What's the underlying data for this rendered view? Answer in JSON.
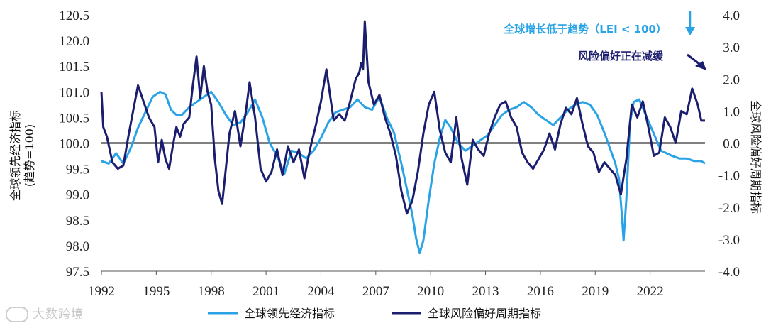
{
  "chart_data": {
    "type": "line",
    "title": "",
    "xlabel": "",
    "x_ticks": [
      "1992",
      "1995",
      "1998",
      "2001",
      "2004",
      "2007",
      "2010",
      "2013",
      "2016",
      "2019",
      "2022"
    ],
    "x_range": [
      1992.0,
      2025.0
    ],
    "left_axis": {
      "label_line1": "全球领先经济指标",
      "label_line2": "(趋势=100)",
      "ylim": [
        97.5,
        120.5
      ],
      "tick_labels": [
        "120.5",
        "120.0",
        "101.5",
        "101.0",
        "100.5",
        "100.0",
        "99.5",
        "99.0",
        "98.5",
        "98.0",
        "97.5"
      ]
    },
    "right_axis": {
      "label": "全球风险偏好周期指标",
      "ylim": [
        -4.0,
        4.0
      ],
      "tick_labels": [
        "4.0",
        "3.0",
        "2.0",
        "1.0",
        "0.0",
        "-1.0",
        "-2.0",
        "-3.0",
        "-4.0"
      ]
    },
    "reference_line": {
      "axis": "right",
      "value": 0.0
    },
    "series": [
      {
        "name": "全球领先经济指标",
        "axis": "left",
        "color": "#29a3e6",
        "x": [
          1992.0,
          1992.4,
          1992.8,
          1993.2,
          1993.6,
          1994.0,
          1994.4,
          1994.8,
          1995.2,
          1995.5,
          1995.8,
          1996.1,
          1996.4,
          1996.8,
          1997.2,
          1997.6,
          1998.0,
          1998.4,
          1998.8,
          1999.2,
          1999.6,
          2000.0,
          2000.4,
          2000.8,
          2001.2,
          2001.6,
          2002.0,
          2002.4,
          2002.8,
          2003.2,
          2003.6,
          2004.0,
          2004.4,
          2004.8,
          2005.2,
          2005.6,
          2006.0,
          2006.4,
          2006.8,
          2007.2,
          2007.6,
          2008.0,
          2008.4,
          2008.7,
          2009.0,
          2009.2,
          2009.4,
          2009.6,
          2009.9,
          2010.2,
          2010.5,
          2010.8,
          2011.1,
          2011.5,
          2011.9,
          2012.3,
          2012.7,
          2013.1,
          2013.5,
          2013.9,
          2014.3,
          2014.7,
          2015.1,
          2015.5,
          2015.9,
          2016.3,
          2016.7,
          2017.1,
          2017.5,
          2017.9,
          2018.3,
          2018.7,
          2019.1,
          2019.5,
          2019.9,
          2020.1,
          2020.3,
          2020.45,
          2020.55,
          2020.7,
          2020.9,
          2021.1,
          2021.4,
          2021.7,
          2022.0,
          2022.3,
          2022.6,
          2022.9,
          2023.2,
          2023.6,
          2024.0,
          2024.4,
          2024.8,
          2025.0
        ],
        "values": [
          99.65,
          99.6,
          99.8,
          99.6,
          99.9,
          100.3,
          100.6,
          100.9,
          101.0,
          100.95,
          100.65,
          100.55,
          100.55,
          100.7,
          100.8,
          100.9,
          101.0,
          100.8,
          100.55,
          100.35,
          100.4,
          100.6,
          100.85,
          100.5,
          100.0,
          99.75,
          99.4,
          99.85,
          99.8,
          99.7,
          99.85,
          100.1,
          100.4,
          100.6,
          100.65,
          100.7,
          100.85,
          100.7,
          100.65,
          100.9,
          100.5,
          100.2,
          99.6,
          99.1,
          98.6,
          98.15,
          97.85,
          98.1,
          98.9,
          99.6,
          100.1,
          100.45,
          100.3,
          100.0,
          99.85,
          99.95,
          100.05,
          100.15,
          100.35,
          100.55,
          100.65,
          100.7,
          100.8,
          100.7,
          100.55,
          100.45,
          100.35,
          100.5,
          100.65,
          100.75,
          100.8,
          100.75,
          100.55,
          100.2,
          99.8,
          99.6,
          99.3,
          98.6,
          98.1,
          98.9,
          100.4,
          100.8,
          100.85,
          100.6,
          100.35,
          100.1,
          99.85,
          99.8,
          99.75,
          99.7,
          99.7,
          99.65,
          99.65,
          99.6
        ]
      },
      {
        "name": "全球风险偏好周期指标",
        "axis": "right",
        "color": "#1b1d6e",
        "x": [
          1992.0,
          1992.1,
          1992.3,
          1992.6,
          1992.9,
          1993.2,
          1993.5,
          1993.8,
          1994.0,
          1994.3,
          1994.6,
          1994.9,
          1995.1,
          1995.3,
          1995.5,
          1995.7,
          1995.9,
          1996.1,
          1996.3,
          1996.5,
          1996.8,
          1997.0,
          1997.2,
          1997.4,
          1997.6,
          1997.8,
          1998.0,
          1998.2,
          1998.4,
          1998.6,
          1998.8,
          1999.0,
          1999.3,
          1999.6,
          1999.9,
          2000.1,
          2000.4,
          2000.7,
          2001.0,
          2001.3,
          2001.6,
          2001.9,
          2002.2,
          2002.5,
          2002.8,
          2003.1,
          2003.4,
          2003.7,
          2004.0,
          2004.3,
          2004.5,
          2004.7,
          2005.0,
          2005.3,
          2005.6,
          2005.9,
          2006.1,
          2006.2,
          2006.3,
          2006.4,
          2006.6,
          2006.9,
          2007.2,
          2007.5,
          2007.8,
          2008.1,
          2008.4,
          2008.7,
          2009.0,
          2009.3,
          2009.6,
          2009.9,
          2010.2,
          2010.5,
          2010.8,
          2011.1,
          2011.4,
          2011.7,
          2012.0,
          2012.3,
          2012.6,
          2012.9,
          2013.2,
          2013.5,
          2013.8,
          2014.1,
          2014.4,
          2014.7,
          2015.0,
          2015.3,
          2015.6,
          2015.9,
          2016.2,
          2016.5,
          2016.8,
          2017.1,
          2017.4,
          2017.7,
          2018.0,
          2018.3,
          2018.6,
          2018.9,
          2019.2,
          2019.5,
          2019.8,
          2020.1,
          2020.4,
          2020.7,
          2021.0,
          2021.3,
          2021.6,
          2021.9,
          2022.2,
          2022.5,
          2022.8,
          2023.1,
          2023.4,
          2023.7,
          2024.0,
          2024.3,
          2024.6,
          2024.8,
          2025.0
        ],
        "values": [
          1.6,
          0.5,
          0.2,
          -0.6,
          -0.8,
          -0.7,
          0.3,
          1.2,
          1.8,
          1.3,
          0.8,
          0.5,
          -0.6,
          0.1,
          -0.5,
          -0.8,
          -0.1,
          0.5,
          0.2,
          0.6,
          0.8,
          1.8,
          2.7,
          1.4,
          2.4,
          1.6,
          1.2,
          -0.5,
          -1.5,
          -1.9,
          -0.8,
          0.3,
          1.0,
          -0.1,
          1.0,
          1.9,
          0.8,
          -0.8,
          -1.2,
          -0.9,
          -0.2,
          -1.0,
          -0.1,
          -0.6,
          -0.2,
          -1.1,
          -0.2,
          0.5,
          1.3,
          2.3,
          1.5,
          0.7,
          0.9,
          0.7,
          1.3,
          2.0,
          2.2,
          2.5,
          2.3,
          3.8,
          1.9,
          1.2,
          1.5,
          0.8,
          0.3,
          -0.4,
          -1.5,
          -2.2,
          -1.8,
          -0.9,
          0.3,
          1.2,
          1.6,
          0.4,
          -0.3,
          -0.6,
          0.8,
          -0.5,
          -1.3,
          0.1,
          -0.2,
          -0.4,
          0.3,
          0.8,
          1.2,
          1.3,
          0.8,
          0.5,
          -0.3,
          -0.6,
          -0.8,
          -0.5,
          -0.2,
          0.3,
          -0.2,
          0.6,
          1.1,
          0.9,
          1.4,
          0.6,
          -0.1,
          -0.3,
          -0.9,
          -0.6,
          -0.8,
          -1.0,
          -1.6,
          -0.5,
          1.2,
          0.8,
          1.3,
          0.5,
          -0.4,
          -0.3,
          0.8,
          0.5,
          0.0,
          1.0,
          0.9,
          1.7,
          1.2,
          0.7,
          0.7
        ]
      }
    ],
    "legend": {
      "position": "bottom-center",
      "entries": [
        "全球领先经济指标",
        "全球风险偏好周期指标"
      ]
    },
    "annotations": [
      {
        "text": "全球增长低于趋势（LEI < 100）",
        "color": "#29a3e6",
        "arrow": "down"
      },
      {
        "text": "风险偏好正在减缓",
        "color": "#1b1d6e",
        "arrow": "down-right"
      }
    ]
  },
  "watermark": "大数跨境"
}
